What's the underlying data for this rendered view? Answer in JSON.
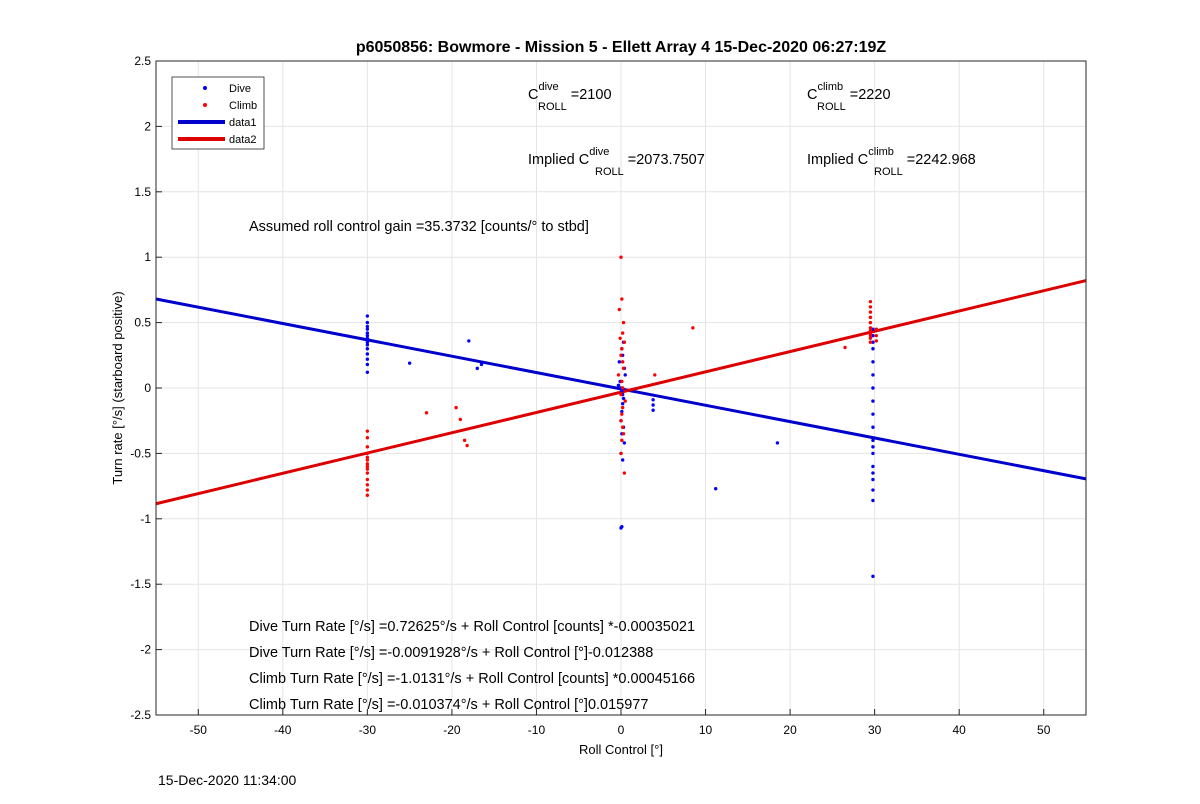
{
  "footer_timestamp": "15-Dec-2020 11:34:00",
  "chart_data": {
    "type": "scatter",
    "title": "p6050856: Bowmore - Mission 5 - Ellett Array 4 15-Dec-2020 06:27:19Z",
    "xlabel": "Roll Control [°]",
    "ylabel": "Turn rate [°/s] (starboard positive)",
    "xlim": [
      -55,
      55
    ],
    "ylim": [
      -2.5,
      2.5
    ],
    "grid": true,
    "legend_position": "top-left",
    "xticks": [
      "-50",
      "-40",
      "-30",
      "-20",
      "-10",
      "0",
      "10",
      "20",
      "30",
      "40",
      "50"
    ],
    "xtick_values": [
      -50,
      -40,
      -30,
      -20,
      -10,
      0,
      10,
      20,
      30,
      40,
      50
    ],
    "yticks": [
      "2.5",
      "2",
      "1.5",
      "1",
      "0.5",
      "0",
      "-0.5",
      "-1",
      "-1.5",
      "-2",
      "-2.5"
    ],
    "ytick_values": [
      2.5,
      2,
      1.5,
      1,
      0.5,
      0,
      -0.5,
      -1,
      -1.5,
      -2,
      -2.5
    ],
    "legend": [
      {
        "label": "Dive",
        "marker": "dot",
        "color": "#0000ff"
      },
      {
        "label": "Climb",
        "marker": "dot",
        "color": "#ff0000"
      },
      {
        "label": "data1",
        "marker": "line",
        "color": "#0000cc"
      },
      {
        "label": "data2",
        "marker": "line",
        "color": "#dd0000"
      }
    ],
    "series": [
      {
        "name": "Dive",
        "kind": "points",
        "color": "#0000ff",
        "x": [
          -30,
          -30,
          -30,
          -30,
          -30,
          -30,
          -30,
          -30,
          -30,
          -30,
          -30,
          -30,
          -30,
          -30,
          -25,
          -18,
          -17,
          -16.5,
          -0.3,
          0,
          0.1,
          0.2,
          -0.1,
          0.3,
          0.5,
          0.2,
          0.4,
          0.1,
          -0.2,
          0,
          0.3,
          0.2,
          0.1,
          0.4,
          0,
          0.2,
          0.1,
          0,
          0.1,
          0.3,
          3.8,
          3.8,
          3.8,
          18.5,
          11.2,
          29.8,
          29.8,
          29.8,
          29.8,
          29.8,
          29.8,
          29.8,
          29.8,
          29.8,
          29.8,
          29.8,
          29.8,
          29.8,
          29.8,
          29.8,
          29.8,
          29.8,
          29.8,
          29.8
        ],
        "y": [
          0.55,
          0.5,
          0.47,
          0.45,
          0.42,
          0.4,
          0.38,
          0.35,
          0.33,
          0.3,
          0.26,
          0.22,
          0.18,
          0.12,
          0.19,
          0.36,
          0.15,
          0.18,
          0.02,
          0.0,
          -0.02,
          -0.05,
          0.05,
          -0.08,
          0.1,
          -0.12,
          0.15,
          -0.18,
          0.2,
          -0.25,
          -0.3,
          0.25,
          -0.35,
          -0.42,
          -0.5,
          -0.55,
          -1.06,
          -1.07,
          0.3,
          0.35,
          -0.09,
          -0.13,
          -0.17,
          -0.42,
          -0.77,
          0.45,
          0.4,
          0.35,
          0.3,
          0.2,
          0.1,
          0.0,
          -0.1,
          -0.2,
          -0.3,
          -0.4,
          -0.45,
          -0.5,
          -0.6,
          -0.65,
          -0.7,
          -0.78,
          -0.86,
          -1.44
        ]
      },
      {
        "name": "Climb",
        "kind": "points",
        "color": "#ff0000",
        "x": [
          -30,
          -30,
          -30,
          -30,
          -30,
          -30,
          -30,
          -30,
          -30,
          -30,
          -30,
          -30,
          -30,
          -30,
          -23,
          -19.5,
          -19,
          -18.5,
          -18.2,
          0,
          0.1,
          -0.2,
          0.3,
          0.2,
          -0.1,
          0.4,
          0.1,
          0,
          0.2,
          0.3,
          -0.3,
          0.1,
          0.2,
          0,
          0.5,
          0.2,
          0.1,
          0,
          0.2,
          0.3,
          0.1,
          0,
          0.4,
          8.5,
          4.0,
          26.5,
          29.5,
          29.5,
          29.5,
          29.5,
          29.5,
          29.5,
          29.5,
          29.5,
          29.5,
          29.5,
          29.5,
          30.2,
          30.2,
          30.2
        ],
        "y": [
          -0.33,
          -0.38,
          -0.45,
          -0.5,
          -0.53,
          -0.55,
          -0.58,
          -0.6,
          -0.62,
          -0.65,
          -0.7,
          -0.74,
          -0.78,
          -0.82,
          -0.19,
          -0.15,
          -0.24,
          -0.4,
          -0.44,
          1.0,
          0.68,
          0.6,
          0.5,
          0.42,
          0.38,
          0.35,
          0.3,
          0.25,
          0.2,
          0.15,
          0.1,
          0.05,
          0.0,
          -0.05,
          -0.1,
          -0.15,
          -0.2,
          -0.25,
          -0.3,
          -0.35,
          -0.4,
          -0.5,
          -0.65,
          0.46,
          0.1,
          0.31,
          0.66,
          0.62,
          0.58,
          0.54,
          0.5,
          0.46,
          0.44,
          0.42,
          0.4,
          0.38,
          0.35,
          0.45,
          0.4,
          0.36
        ]
      },
      {
        "name": "data1",
        "kind": "line",
        "color": "#0000cc",
        "x": [
          -55,
          55
        ],
        "y": [
          0.6806,
          -0.6948
        ]
      },
      {
        "name": "data2",
        "kind": "line",
        "color": "#dd0000",
        "x": [
          -55,
          55
        ],
        "y": [
          -0.8849,
          0.8214
        ]
      }
    ],
    "annotations": {
      "cdive": {
        "base": "C",
        "sup": "dive",
        "sub": "ROLL",
        "value": " =2100"
      },
      "cclimb": {
        "base": "C",
        "sup": "climb",
        "sub": "ROLL",
        "value": " =2220"
      },
      "implied_dive": {
        "prefix": "Implied C",
        "sup": "dive",
        "sub": "ROLL",
        "value": " =2073.7507"
      },
      "implied_climb": {
        "prefix": "Implied C",
        "sup": "climb",
        "sub": "ROLL",
        "value": " =2242.968"
      },
      "gain": "Assumed roll control gain =35.3732 [counts/° to stbd]",
      "eq1": "Dive Turn Rate [°/s] =0.72625°/s + Roll Control [counts] *-0.00035021",
      "eq2": "Dive Turn Rate [°/s] =-0.0091928°/s + Roll Control [°]-0.012388",
      "eq3": "Climb Turn Rate [°/s] =-1.0131°/s + Roll Control [counts] *0.00045166",
      "eq4": "Climb Turn Rate [°/s] =-0.010374°/s + Roll Control [°]0.015977"
    }
  }
}
